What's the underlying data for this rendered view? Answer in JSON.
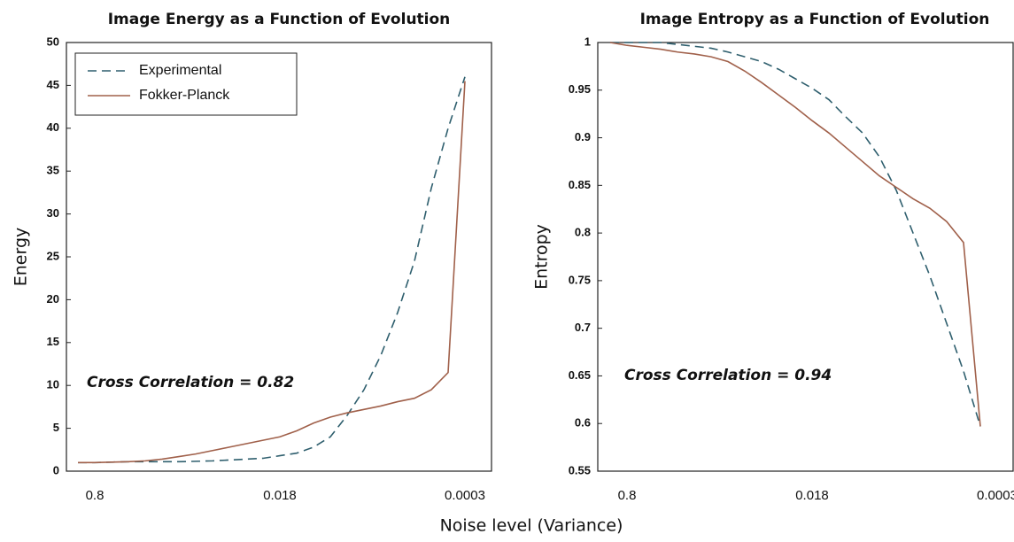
{
  "xlabel": "Noise level (Variance)",
  "chart_data": [
    {
      "type": "line",
      "title": "Image Energy as a Function of Evolution",
      "ylabel": "Energy",
      "annotation": "Cross Correlation = 0.82",
      "legend": "upper left",
      "categories": [
        null,
        "0.8",
        null,
        null,
        null,
        null,
        null,
        null,
        null,
        null,
        null,
        null,
        "0.018",
        null,
        null,
        null,
        null,
        null,
        null,
        null,
        null,
        null,
        null,
        "0.0003"
      ],
      "ylim": [
        0,
        50
      ],
      "yticks": [
        0,
        5,
        10,
        15,
        20,
        25,
        30,
        35,
        40,
        45,
        50
      ],
      "series": [
        {
          "name": "Experimental",
          "color": "#2f5f6e",
          "style": "dashed",
          "values": [
            1.0,
            1.0,
            1.05,
            1.1,
            1.1,
            1.1,
            1.1,
            1.15,
            1.2,
            1.3,
            1.4,
            1.5,
            1.8,
            2.1,
            2.8,
            4.0,
            6.5,
            9.5,
            13.5,
            18.5,
            24.5,
            33,
            40,
            46
          ]
        },
        {
          "name": "Fokker-Planck",
          "color": "#a0604a",
          "style": "solid",
          "values": [
            1.0,
            1.0,
            1.05,
            1.1,
            1.2,
            1.4,
            1.7,
            2.0,
            2.4,
            2.8,
            3.2,
            3.6,
            4.0,
            4.7,
            5.6,
            6.3,
            6.8,
            7.2,
            7.6,
            8.1,
            8.5,
            9.5,
            11.5,
            45.5
          ]
        }
      ]
    },
    {
      "type": "line",
      "title": "Image Entropy as a Function of Evolution",
      "ylabel": "Entropy",
      "annotation": "Cross Correlation = 0.94",
      "categories": [
        null,
        "0.8",
        null,
        null,
        null,
        null,
        null,
        null,
        null,
        null,
        null,
        null,
        "0.018",
        null,
        null,
        null,
        null,
        null,
        null,
        null,
        null,
        null,
        null,
        "0.0003"
      ],
      "ylim": [
        0.55,
        1
      ],
      "yticks": [
        0.55,
        0.6,
        0.65,
        0.7,
        0.75,
        0.8,
        0.85,
        0.9,
        0.95,
        1
      ],
      "series": [
        {
          "color": "#2f5f6e",
          "style": "dashed",
          "values": [
            1.0,
            1.0,
            1.0,
            1.0,
            0.998,
            0.996,
            0.994,
            0.99,
            0.985,
            0.98,
            0.972,
            0.962,
            0.952,
            0.94,
            0.922,
            0.905,
            0.88,
            0.845,
            0.8,
            0.755,
            0.705,
            0.655,
            0.597,
            null
          ]
        },
        {
          "color": "#a0604a",
          "style": "solid",
          "values": [
            1.0,
            0.997,
            0.995,
            0.993,
            0.99,
            0.988,
            0.985,
            0.98,
            0.97,
            0.958,
            0.945,
            0.932,
            0.918,
            0.905,
            0.89,
            0.875,
            0.86,
            0.848,
            0.836,
            0.826,
            0.812,
            0.79,
            0.597,
            null
          ]
        }
      ]
    }
  ]
}
